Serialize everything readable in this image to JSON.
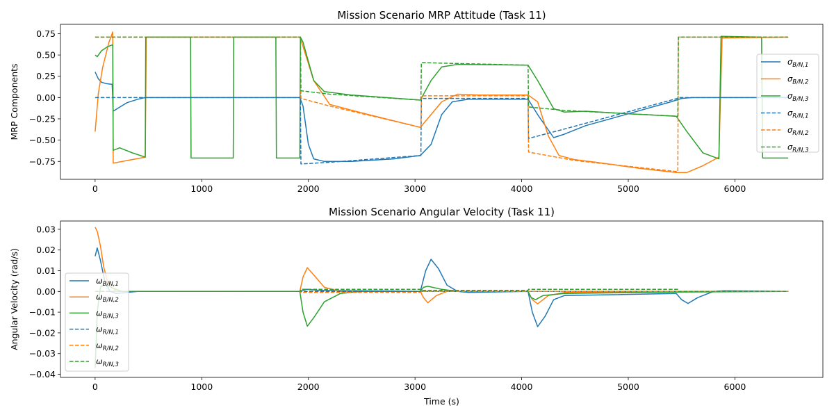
{
  "chart_data": [
    {
      "type": "line",
      "title": "Mission Scenario MRP Attitude (Task 11)",
      "xlabel": "",
      "ylabel": "MRP Components",
      "xlim": [
        -325,
        6825
      ],
      "ylim": [
        -0.96,
        0.86
      ],
      "xticks": [
        0,
        1000,
        2000,
        3000,
        4000,
        5000,
        6000
      ],
      "yticks": [
        -0.75,
        -0.5,
        -0.25,
        0.0,
        0.25,
        0.5,
        0.75
      ],
      "ytick_labels": [
        "−0.75",
        "−0.50",
        "−0.25",
        "0.00",
        "0.25",
        "0.50",
        "0.75"
      ],
      "legend": "right",
      "series": [
        {
          "name": "σB/N,1",
          "base": "σ",
          "sub": "B/N,1",
          "color": "#1f77b4",
          "dash": false,
          "points": [
            [
              0,
              0.3
            ],
            [
              30,
              0.22
            ],
            [
              60,
              0.18
            ],
            [
              100,
              0.165
            ],
            [
              160,
              0.155
            ],
            [
              170,
              -0.16
            ],
            [
              220,
              -0.12
            ],
            [
              300,
              -0.06
            ],
            [
              400,
              -0.02
            ],
            [
              470,
              0.0
            ],
            [
              1920,
              0.0
            ],
            [
              1950,
              -0.1
            ],
            [
              2000,
              -0.55
            ],
            [
              2050,
              -0.72
            ],
            [
              2150,
              -0.75
            ],
            [
              2400,
              -0.75
            ],
            [
              2800,
              -0.72
            ],
            [
              3050,
              -0.68
            ],
            [
              3150,
              -0.55
            ],
            [
              3250,
              -0.2
            ],
            [
              3350,
              -0.05
            ],
            [
              3500,
              -0.02
            ],
            [
              4060,
              -0.02
            ],
            [
              4150,
              -0.2
            ],
            [
              4300,
              -0.47
            ],
            [
              4400,
              -0.43
            ],
            [
              4600,
              -0.33
            ],
            [
              5000,
              -0.19
            ],
            [
              5400,
              -0.05
            ],
            [
              5500,
              -0.01
            ],
            [
              5600,
              0.0
            ],
            [
              6500,
              0.0
            ]
          ]
        },
        {
          "name": "σB/N,2",
          "base": "σ",
          "sub": "B/N,2",
          "color": "#ff7f0e",
          "dash": false,
          "points": [
            [
              0,
              -0.4
            ],
            [
              30,
              0.05
            ],
            [
              70,
              0.35
            ],
            [
              130,
              0.65
            ],
            [
              165,
              0.77
            ],
            [
              170,
              -0.77
            ],
            [
              300,
              -0.74
            ],
            [
              470,
              -0.7
            ],
            [
              480,
              0.71
            ],
            [
              1920,
              0.71
            ],
            [
              1950,
              0.6
            ],
            [
              2050,
              0.2
            ],
            [
              2200,
              -0.08
            ],
            [
              2500,
              -0.18
            ],
            [
              3050,
              -0.35
            ],
            [
              3150,
              -0.2
            ],
            [
              3250,
              -0.05
            ],
            [
              3400,
              0.04
            ],
            [
              3600,
              0.03
            ],
            [
              4060,
              0.03
            ],
            [
              4150,
              -0.05
            ],
            [
              4250,
              -0.45
            ],
            [
              4350,
              -0.68
            ],
            [
              4500,
              -0.73
            ],
            [
              4700,
              -0.76
            ],
            [
              5100,
              -0.83
            ],
            [
              5450,
              -0.88
            ],
            [
              5550,
              -0.88
            ],
            [
              5700,
              -0.8
            ],
            [
              5850,
              -0.7
            ],
            [
              5880,
              0.7
            ],
            [
              6500,
              0.71
            ]
          ]
        },
        {
          "name": "σB/N,3",
          "base": "σ",
          "sub": "B/N,3",
          "color": "#2ca02c",
          "dash": false,
          "points": [
            [
              0,
              0.5
            ],
            [
              20,
              0.48
            ],
            [
              60,
              0.55
            ],
            [
              120,
              0.6
            ],
            [
              165,
              0.62
            ],
            [
              170,
              -0.62
            ],
            [
              230,
              -0.59
            ],
            [
              350,
              -0.65
            ],
            [
              470,
              -0.7
            ],
            [
              475,
              0.71
            ],
            [
              895,
              0.71
            ],
            [
              900,
              -0.71
            ],
            [
              1295,
              -0.71
            ],
            [
              1300,
              0.71
            ],
            [
              1695,
              0.71
            ],
            [
              1700,
              -0.71
            ],
            [
              1920,
              -0.71
            ],
            [
              1925,
              0.71
            ],
            [
              1950,
              0.65
            ],
            [
              2050,
              0.2
            ],
            [
              2150,
              0.07
            ],
            [
              2400,
              0.03
            ],
            [
              3050,
              -0.03
            ],
            [
              3150,
              0.2
            ],
            [
              3250,
              0.36
            ],
            [
              3400,
              0.39
            ],
            [
              4060,
              0.38
            ],
            [
              4150,
              0.2
            ],
            [
              4300,
              -0.13
            ],
            [
              4400,
              -0.17
            ],
            [
              4600,
              -0.16
            ],
            [
              5000,
              -0.19
            ],
            [
              5450,
              -0.22
            ],
            [
              5550,
              -0.4
            ],
            [
              5700,
              -0.65
            ],
            [
              5850,
              -0.72
            ],
            [
              5870,
              0.72
            ],
            [
              6250,
              0.71
            ],
            [
              6260,
              -0.71
            ],
            [
              6500,
              -0.71
            ]
          ]
        },
        {
          "name": "σR/N,1",
          "base": "σ",
          "sub": "R/N,1",
          "color": "#1f77b4",
          "dash": true,
          "points": [
            [
              0,
              0.0
            ],
            [
              1925,
              0.0
            ],
            [
              1930,
              -0.78
            ],
            [
              2200,
              -0.76
            ],
            [
              3055,
              -0.68
            ],
            [
              3060,
              -0.01
            ],
            [
              4060,
              -0.01
            ],
            [
              4065,
              -0.48
            ],
            [
              4400,
              -0.37
            ],
            [
              5460,
              -0.01
            ],
            [
              5470,
              0.0
            ],
            [
              6500,
              0.0
            ]
          ]
        },
        {
          "name": "σR/N,2",
          "base": "σ",
          "sub": "R/N,2",
          "color": "#ff7f0e",
          "dash": true,
          "points": [
            [
              0,
              0.71
            ],
            [
              1925,
              0.71
            ],
            [
              1930,
              -0.01
            ],
            [
              2200,
              -0.1
            ],
            [
              3055,
              -0.35
            ],
            [
              3060,
              0.02
            ],
            [
              4060,
              0.02
            ],
            [
              4065,
              -0.64
            ],
            [
              4500,
              -0.74
            ],
            [
              5465,
              -0.87
            ],
            [
              5470,
              0.71
            ],
            [
              6500,
              0.71
            ]
          ]
        },
        {
          "name": "σR/N,3",
          "base": "σ",
          "sub": "R/N,3",
          "color": "#2ca02c",
          "dash": true,
          "points": [
            [
              0,
              0.71
            ],
            [
              1925,
              0.71
            ],
            [
              1930,
              0.08
            ],
            [
              2200,
              0.04
            ],
            [
              3055,
              -0.03
            ],
            [
              3060,
              0.41
            ],
            [
              4060,
              0.38
            ],
            [
              4065,
              -0.11
            ],
            [
              4400,
              -0.15
            ],
            [
              5465,
              -0.22
            ],
            [
              5470,
              0.71
            ],
            [
              6500,
              0.71
            ]
          ]
        }
      ]
    },
    {
      "type": "line",
      "title": "Mission Scenario Angular Velocity (Task 11)",
      "xlabel": "Time (s)",
      "ylabel": "Angular Velocity (rad/s)",
      "xlim": [
        -325,
        6825
      ],
      "ylim": [
        -0.0415,
        0.034
      ],
      "xticks": [
        0,
        1000,
        2000,
        3000,
        4000,
        5000,
        6000
      ],
      "yticks": [
        -0.04,
        -0.03,
        -0.02,
        -0.01,
        0.0,
        0.01,
        0.02,
        0.03
      ],
      "ytick_labels": [
        "−0.04",
        "−0.03",
        "−0.02",
        "−0.01",
        "0.00",
        "0.01",
        "0.02",
        "0.03"
      ],
      "legend": "left",
      "series": [
        {
          "name": "ωB/N,1",
          "base": "ω",
          "sub": "B/N,1",
          "color": "#1f77b4",
          "dash": false,
          "points": [
            [
              0,
              0.017
            ],
            [
              20,
              0.021
            ],
            [
              50,
              0.015
            ],
            [
              90,
              0.005
            ],
            [
              140,
              0.0
            ],
            [
              200,
              -0.001
            ],
            [
              300,
              -0.0005
            ],
            [
              400,
              0.0
            ],
            [
              1920,
              0.0
            ],
            [
              1980,
              0.001
            ],
            [
              2100,
              0.0005
            ],
            [
              3050,
              0.0
            ],
            [
              3100,
              0.01
            ],
            [
              3150,
              0.0155
            ],
            [
              3220,
              0.011
            ],
            [
              3300,
              0.003
            ],
            [
              3400,
              0.0
            ],
            [
              3500,
              -0.0005
            ],
            [
              4060,
              0.0
            ],
            [
              4100,
              -0.01
            ],
            [
              4150,
              -0.017
            ],
            [
              4220,
              -0.012
            ],
            [
              4300,
              -0.004
            ],
            [
              4400,
              -0.002
            ],
            [
              5450,
              -0.001
            ],
            [
              5500,
              -0.004
            ],
            [
              5560,
              -0.0058
            ],
            [
              5650,
              -0.003
            ],
            [
              5800,
              0.0
            ],
            [
              5900,
              0.0003
            ],
            [
              6500,
              0.0
            ]
          ]
        },
        {
          "name": "ωB/N,2",
          "base": "ω",
          "sub": "B/N,2",
          "color": "#ff7f0e",
          "dash": false,
          "points": [
            [
              0,
              0.031
            ],
            [
              20,
              0.029
            ],
            [
              50,
              0.022
            ],
            [
              80,
              0.012
            ],
            [
              120,
              0.004
            ],
            [
              200,
              0.0
            ],
            [
              1920,
              0.0
            ],
            [
              1950,
              0.007
            ],
            [
              1990,
              0.0115
            ],
            [
              2050,
              0.008
            ],
            [
              2150,
              0.002
            ],
            [
              2300,
              0.0
            ],
            [
              3050,
              0.0
            ],
            [
              3080,
              -0.003
            ],
            [
              3120,
              -0.0055
            ],
            [
              3200,
              -0.002
            ],
            [
              3300,
              0.0
            ],
            [
              4060,
              0.0
            ],
            [
              4100,
              -0.004
            ],
            [
              4150,
              -0.006
            ],
            [
              4250,
              -0.002
            ],
            [
              4400,
              -0.0005
            ],
            [
              5400,
              0.0
            ],
            [
              6500,
              0.0
            ]
          ]
        },
        {
          "name": "ωB/N,3",
          "base": "ω",
          "sub": "B/N,3",
          "color": "#2ca02c",
          "dash": false,
          "points": [
            [
              0,
              -0.037
            ],
            [
              20,
              -0.01
            ],
            [
              50,
              0.002
            ],
            [
              90,
              0.004
            ],
            [
              150,
              0.002
            ],
            [
              250,
              0.0
            ],
            [
              1920,
              0.0
            ],
            [
              1950,
              -0.01
            ],
            [
              1990,
              -0.0168
            ],
            [
              2060,
              -0.012
            ],
            [
              2150,
              -0.005
            ],
            [
              2300,
              -0.001
            ],
            [
              2500,
              0.0
            ],
            [
              3050,
              0.0
            ],
            [
              3080,
              0.002
            ],
            [
              3120,
              0.0025
            ],
            [
              3250,
              0.001
            ],
            [
              3400,
              0.0
            ],
            [
              4060,
              0.0
            ],
            [
              4090,
              -0.003
            ],
            [
              4130,
              -0.004
            ],
            [
              4200,
              -0.002
            ],
            [
              4400,
              -0.001
            ],
            [
              5450,
              -0.0003
            ],
            [
              6500,
              0.0
            ]
          ]
        },
        {
          "name": "ωR/N,1",
          "base": "ω",
          "sub": "R/N,1",
          "color": "#1f77b4",
          "dash": true,
          "points": [
            [
              0,
              0.0
            ],
            [
              6500,
              0.0
            ]
          ]
        },
        {
          "name": "ωR/N,2",
          "base": "ω",
          "sub": "R/N,2",
          "color": "#ff7f0e",
          "dash": true,
          "points": [
            [
              0,
              0.0
            ],
            [
              1925,
              0.0
            ],
            [
              1930,
              -0.0005
            ],
            [
              3055,
              -0.0005
            ],
            [
              3060,
              0.0
            ],
            [
              6500,
              0.0
            ]
          ]
        },
        {
          "name": "ωR/N,3",
          "base": "ω",
          "sub": "R/N,3",
          "color": "#2ca02c",
          "dash": true,
          "points": [
            [
              0,
              0.0
            ],
            [
              1925,
              0.0
            ],
            [
              1930,
              0.001
            ],
            [
              3055,
              0.001
            ],
            [
              3060,
              0.0005
            ],
            [
              4060,
              0.0005
            ],
            [
              4065,
              0.001
            ],
            [
              5465,
              0.001
            ],
            [
              5470,
              0.0
            ],
            [
              6500,
              0.0
            ]
          ]
        }
      ]
    }
  ]
}
